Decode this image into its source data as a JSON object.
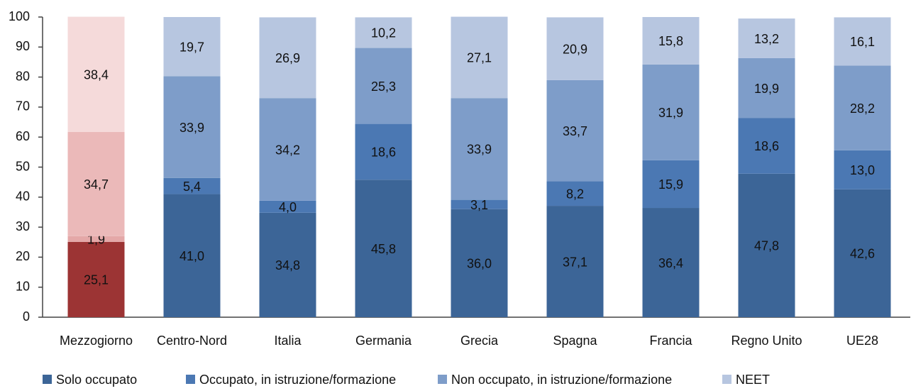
{
  "chart_data": {
    "type": "stacked_bar",
    "categories": [
      "Mezzogiorno",
      "Centro-Nord",
      "Italia",
      "Germania",
      "Grecia",
      "Spagna",
      "Francia",
      "Regno Unito",
      "UE28"
    ],
    "series": [
      {
        "name": "Solo occupato",
        "color": "#3c6597",
        "colors": [
          "#9c3434",
          "#3c6597",
          "#3c6597",
          "#3c6597",
          "#3c6597",
          "#3c6597",
          "#3c6597",
          "#3c6597",
          "#3c6597"
        ],
        "values": [
          25.1,
          41.0,
          34.8,
          45.8,
          36.0,
          37.1,
          36.4,
          47.8,
          42.6
        ],
        "value_labels": [
          "25,1",
          "41,0",
          "34,8",
          "45,8",
          "36,0",
          "37,1",
          "36,4",
          "47,8",
          "42,6"
        ]
      },
      {
        "name": "Occupato, in istruzione/formazione",
        "color": "#4b78b3",
        "colors": [
          "#e4a8a8",
          "#4b78b3",
          "#4b78b3",
          "#4b78b3",
          "#4b78b3",
          "#4b78b3",
          "#4b78b3",
          "#4b78b3",
          "#4b78b3"
        ],
        "values": [
          1.9,
          5.4,
          4.0,
          18.6,
          3.1,
          8.2,
          15.9,
          18.6,
          13.0
        ],
        "value_labels": [
          "1,9",
          "5,4",
          "4,0",
          "18,6",
          "3,1",
          "8,2",
          "15,9",
          "18,6",
          "13,0"
        ]
      },
      {
        "name": "Non occupato, in istruzione/formazione",
        "color": "#7e9dc9",
        "colors": [
          "#ebb9b9",
          "#7e9dc9",
          "#7e9dc9",
          "#7e9dc9",
          "#7e9dc9",
          "#7e9dc9",
          "#7e9dc9",
          "#7e9dc9",
          "#7e9dc9"
        ],
        "values": [
          34.7,
          33.9,
          34.2,
          25.3,
          33.9,
          33.7,
          31.9,
          19.9,
          28.2
        ],
        "value_labels": [
          "34,7",
          "33,9",
          "34,2",
          "25,3",
          "33,9",
          "33,7",
          "31,9",
          "19,9",
          "28,2"
        ]
      },
      {
        "name": "NEET",
        "color": "#b7c6e0",
        "colors": [
          "#f5dada",
          "#b7c6e0",
          "#b7c6e0",
          "#b7c6e0",
          "#b7c6e0",
          "#b7c6e0",
          "#b7c6e0",
          "#b7c6e0",
          "#b7c6e0"
        ],
        "values": [
          38.4,
          19.7,
          26.9,
          10.2,
          27.1,
          20.9,
          15.8,
          13.2,
          16.1
        ],
        "value_labels": [
          "38,4",
          "19,7",
          "26,9",
          "10,2",
          "27,1",
          "20,9",
          "15,8",
          "13,2",
          "16,1"
        ]
      }
    ],
    "ylim": [
      0,
      100
    ],
    "yticks": [
      0,
      10,
      20,
      30,
      40,
      50,
      60,
      70,
      80,
      90,
      100
    ],
    "grid": false,
    "legend": "bottom"
  }
}
